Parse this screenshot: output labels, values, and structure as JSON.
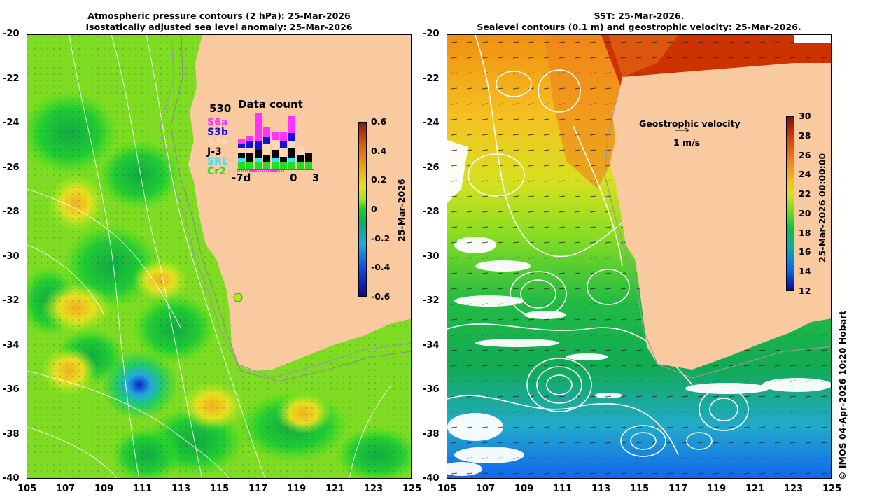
{
  "left": {
    "title1": "Atmospheric pressure contours (2 hPa): 25-Mar-2026",
    "title2": "Isostatically adjusted sea level anomaly: 25-Mar-2026",
    "colorbar": {
      "ticks": [
        "0.6",
        "0.4",
        "0.2",
        "0",
        "-0.2",
        "-0.4",
        "-0.6"
      ],
      "label": "25-Mar-2026"
    },
    "data_count": {
      "max": "530",
      "title": "Data count",
      "satellites": [
        {
          "name": "S6a",
          "color": "#ff33ff"
        },
        {
          "name": "S3b",
          "color": "#1010dd"
        },
        {
          "name": "S3a",
          "color": "#ffd9b3"
        },
        {
          "name": "J-3",
          "color": "#000000"
        },
        {
          "name": "SRL",
          "color": "#33e6ff"
        },
        {
          "name": "Cr2",
          "color": "#22dd22"
        }
      ],
      "axis": [
        "-7d",
        "0",
        "3"
      ]
    }
  },
  "right": {
    "title1": "SST: 25-Mar-2026.",
    "title2": "Sealevel contours (0.1 m) and geostrophic velocity: 25-Mar-2026.",
    "velocity_label": "Geostrophic velocity",
    "velocity_scale": "1 m/s",
    "colorbar": {
      "ticks": [
        "30",
        "28",
        "26",
        "24",
        "22",
        "20",
        "18",
        "16",
        "14",
        "12"
      ],
      "label": "25-Mar-2026 00:00:00"
    },
    "credit": "© IMOS 04-Apr-2026 10:20 Hobart"
  },
  "axes": {
    "lat": [
      "-20",
      "-22",
      "-24",
      "-26",
      "-28",
      "-30",
      "-32",
      "-34",
      "-36",
      "-38",
      "-40"
    ],
    "lon": [
      "105",
      "107",
      "109",
      "111",
      "113",
      "115",
      "117",
      "119",
      "121",
      "123",
      "125"
    ]
  },
  "colors": {
    "land": "#f9c99f",
    "sla_zero": "#22cc22",
    "sla_pos": "#aaee22",
    "sst_warm": "#cc3300",
    "sst_cool": "#0066ff"
  }
}
